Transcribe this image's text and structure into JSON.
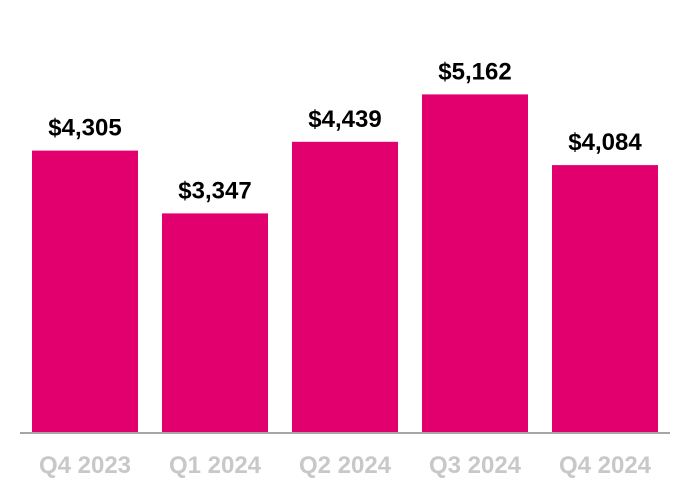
{
  "chart_data": {
    "type": "bar",
    "title": "",
    "xlabel": "",
    "ylabel": "",
    "categories": [
      "Q4 2023",
      "Q1 2024",
      "Q2 2024",
      "Q3 2024",
      "Q4 2024"
    ],
    "values": [
      4305,
      3347,
      4439,
      5162,
      4084
    ],
    "data_labels": [
      "$4,305",
      "$3,347",
      "$4,439",
      "$5,162",
      "$4,084"
    ],
    "ylim": [
      0,
      5640
    ],
    "grid": false,
    "legend": "none",
    "bar_color": "#e2006f",
    "axis_color": "#a6a6a6",
    "tick_label_color": "#c8c8c8",
    "value_label_color": "#000000"
  }
}
